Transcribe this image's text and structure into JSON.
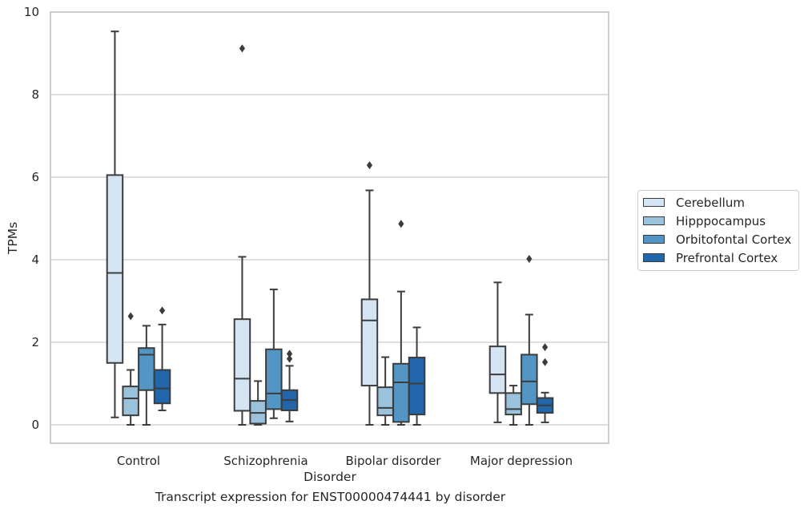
{
  "caption": "Transcript expression for ENST00000474441 by disorder",
  "chart_data": {
    "type": "box",
    "title": "",
    "xlabel": "Disorder",
    "ylabel": "TPMs",
    "ylim": [
      -0.45,
      10
    ],
    "yticks": [
      0,
      2,
      4,
      6,
      8,
      10
    ],
    "grid": "horizontal",
    "legend_position": "right",
    "categories": [
      "Control",
      "Schizophrenia",
      "Bipolar disorder",
      "Major depression"
    ],
    "series": [
      {
        "name": "Cerebellum",
        "color": "#d4e4f2",
        "boxes": [
          {
            "whislo": 0.18,
            "q1": 1.5,
            "med": 3.68,
            "q3": 6.05,
            "whishi": 9.53,
            "fliers": []
          },
          {
            "whislo": 0.0,
            "q1": 0.34,
            "med": 1.12,
            "q3": 2.56,
            "whishi": 4.07,
            "fliers": [
              9.12
            ]
          },
          {
            "whislo": 0.0,
            "q1": 0.95,
            "med": 2.53,
            "q3": 3.04,
            "whishi": 5.68,
            "fliers": [
              6.29
            ]
          },
          {
            "whislo": 0.06,
            "q1": 0.77,
            "med": 1.22,
            "q3": 1.9,
            "whishi": 3.45,
            "fliers": []
          }
        ]
      },
      {
        "name": "Hipppocampus",
        "color": "#9ac2dd",
        "boxes": [
          {
            "whislo": 0.0,
            "q1": 0.23,
            "med": 0.64,
            "q3": 0.93,
            "whishi": 1.33,
            "fliers": [
              2.63
            ]
          },
          {
            "whislo": 0.0,
            "q1": 0.03,
            "med": 0.29,
            "q3": 0.58,
            "whishi": 1.06,
            "fliers": []
          },
          {
            "whislo": 0.0,
            "q1": 0.23,
            "med": 0.41,
            "q3": 0.91,
            "whishi": 1.64,
            "fliers": []
          },
          {
            "whislo": 0.0,
            "q1": 0.25,
            "med": 0.38,
            "q3": 0.77,
            "whishi": 0.95,
            "fliers": []
          }
        ]
      },
      {
        "name": "Orbitofontal Cortex",
        "color": "#5396c6",
        "boxes": [
          {
            "whislo": 0.0,
            "q1": 0.84,
            "med": 1.7,
            "q3": 1.86,
            "whishi": 2.4,
            "fliers": []
          },
          {
            "whislo": 0.16,
            "q1": 0.38,
            "med": 0.76,
            "q3": 1.83,
            "whishi": 3.28,
            "fliers": []
          },
          {
            "whislo": 0.0,
            "q1": 0.07,
            "med": 1.03,
            "q3": 1.48,
            "whishi": 3.23,
            "fliers": [
              4.87
            ]
          },
          {
            "whislo": 0.0,
            "q1": 0.5,
            "med": 1.05,
            "q3": 1.7,
            "whishi": 2.67,
            "fliers": [
              4.02
            ]
          }
        ]
      },
      {
        "name": "Prefrontal Cortex",
        "color": "#2166ab",
        "boxes": [
          {
            "whislo": 0.35,
            "q1": 0.52,
            "med": 0.88,
            "q3": 1.33,
            "whishi": 2.43,
            "fliers": [
              2.77
            ]
          },
          {
            "whislo": 0.08,
            "q1": 0.35,
            "med": 0.6,
            "q3": 0.84,
            "whishi": 1.43,
            "fliers": [
              1.6,
              1.72
            ]
          },
          {
            "whislo": 0.0,
            "q1": 0.25,
            "med": 1.0,
            "q3": 1.63,
            "whishi": 2.36,
            "fliers": []
          },
          {
            "whislo": 0.06,
            "q1": 0.29,
            "med": 0.47,
            "q3": 0.65,
            "whishi": 0.78,
            "fliers": [
              1.52,
              1.88
            ]
          }
        ]
      }
    ]
  }
}
